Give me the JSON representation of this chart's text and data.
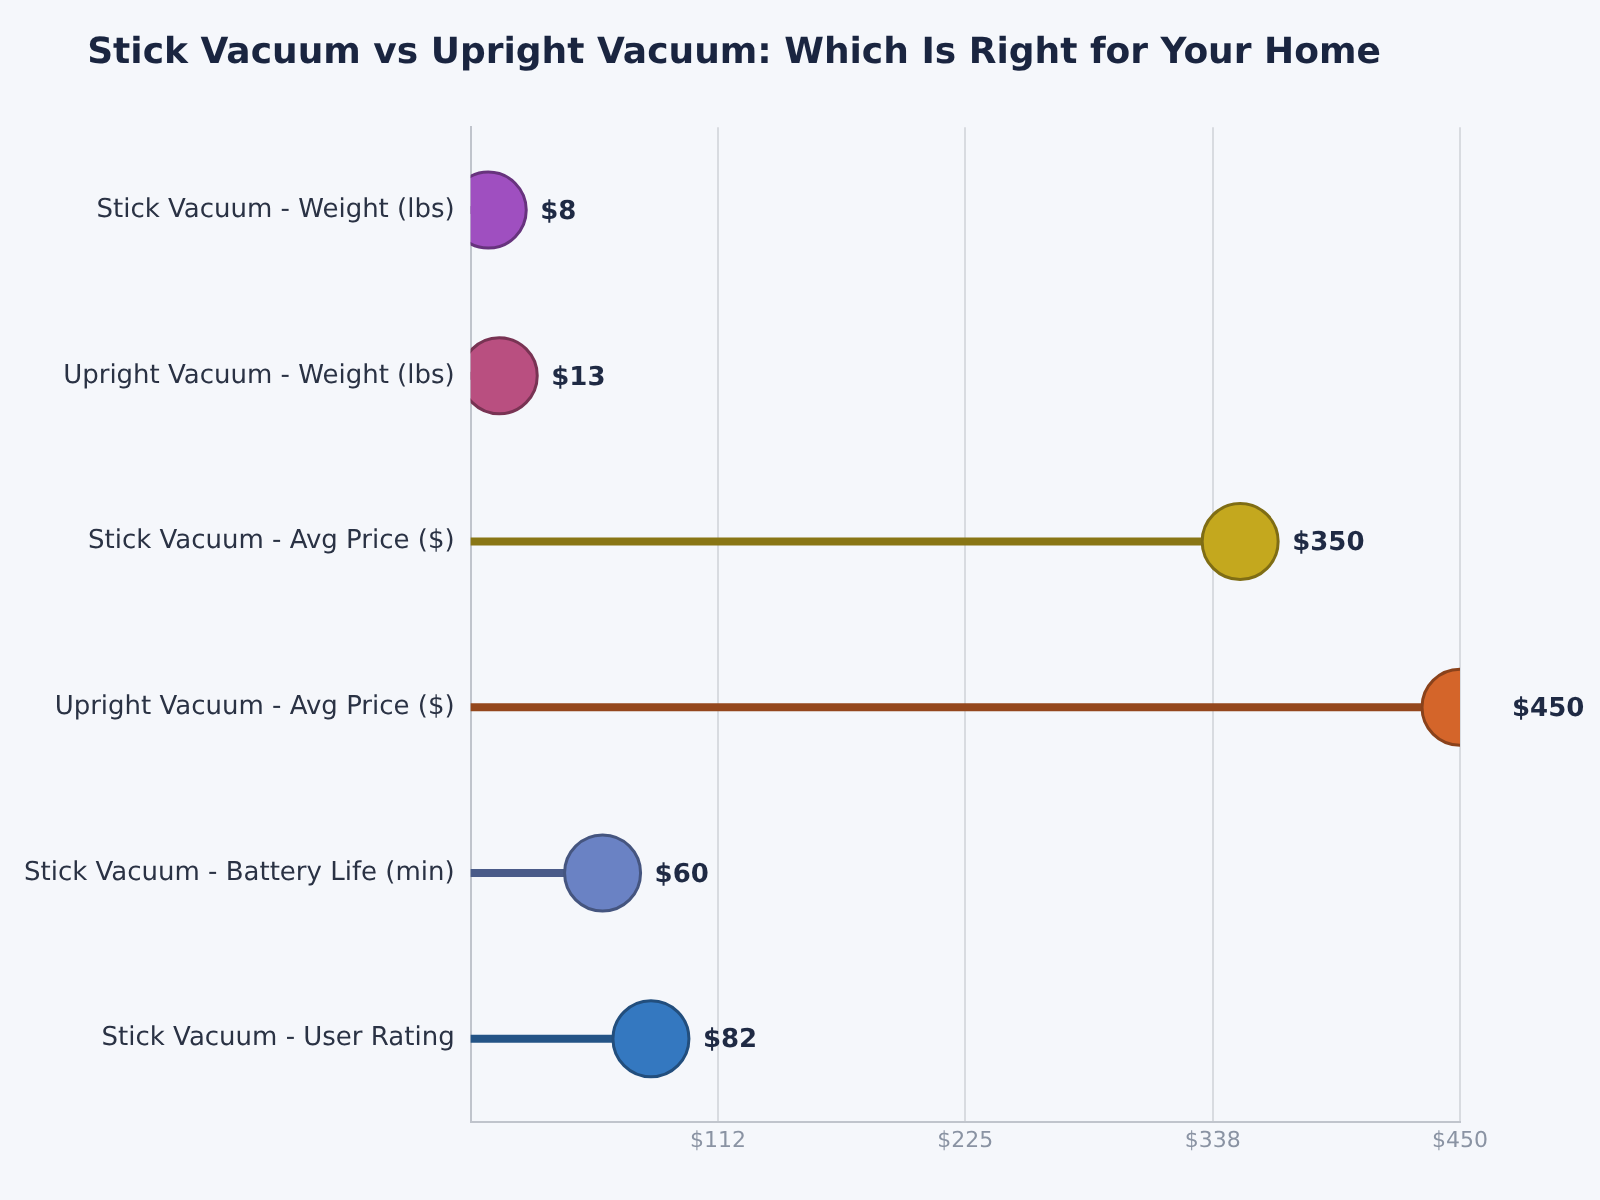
{
  "chart_data": {
    "type": "lollipop",
    "orientation": "horizontal",
    "title": "Stick Vacuum vs Upright Vacuum: Which Is Right for Your Home",
    "categories": [
      "Stick Vacuum - Weight (lbs)",
      "Upright Vacuum - Weight (lbs)",
      "Stick Vacuum - Avg Price ($)",
      "Upright Vacuum - Avg Price ($)",
      "Stick Vacuum - Battery Life (min)",
      "Stick Vacuum - User Rating"
    ],
    "values": [
      8,
      13,
      350,
      450,
      60,
      82
    ],
    "value_labels": [
      "$8",
      "$13",
      "$350",
      "$450",
      "$60",
      "$82"
    ],
    "colors": [
      "#9f4fc0",
      "#b94f80",
      "#c4a81e",
      "#d4652a",
      "#6a82c4",
      "#3478c0"
    ],
    "xlim": [
      0,
      450
    ],
    "xticks": [
      {
        "value": 0,
        "label": null
      },
      {
        "value": 112.5,
        "label": "$112"
      },
      {
        "value": 225,
        "label": "$225"
      },
      {
        "value": 337.5,
        "label": "$338"
      },
      {
        "value": 450,
        "label": "$450"
      }
    ],
    "grid": "x",
    "legend": false,
    "marker": "circle"
  }
}
